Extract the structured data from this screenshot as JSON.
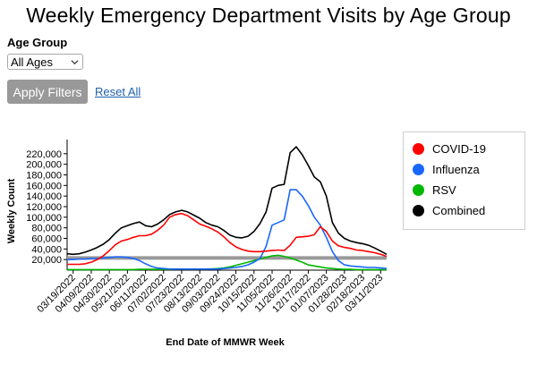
{
  "page": {
    "title": "Weekly Emergency Department Visits by Age Group"
  },
  "filters": {
    "age_group_label": "Age Group",
    "age_group_selected": "All Ages",
    "apply_label": "Apply Filters",
    "reset_label": "Reset All"
  },
  "legend": {
    "items": [
      {
        "label": "COVID-19",
        "color": "#ff0000"
      },
      {
        "label": "Influenza",
        "color": "#1a66ff"
      },
      {
        "label": "RSV",
        "color": "#00b800"
      },
      {
        "label": "Combined",
        "color": "#000000"
      }
    ]
  },
  "chart_data": {
    "type": "line",
    "title": "Weekly Emergency Department Visits by Age Group",
    "xlabel": "End Date of MMWR Week",
    "ylabel": "Weekly Count",
    "ylim": [
      0,
      240000
    ],
    "yticks": [
      20000,
      40000,
      60000,
      80000,
      100000,
      120000,
      140000,
      160000,
      180000,
      200000,
      220000
    ],
    "ytick_labels": [
      "20,000",
      "40,000",
      "60,000",
      "80,000",
      "100,000",
      "120,000",
      "140,000",
      "160,000",
      "180,000",
      "200,000",
      "220,000"
    ],
    "x_tick_labels": [
      "03/19/2022",
      "04/09/2022",
      "04/30/2022",
      "05/21/2022",
      "06/11/2022",
      "07/02/2022",
      "07/23/2022",
      "08/13/2022",
      "09/03/2022",
      "09/24/2022",
      "10/15/2022",
      "11/05/2022",
      "11/26/2022",
      "12/17/2022",
      "01/07/2023",
      "01/28/2023",
      "02/18/2023",
      "03/11/2023"
    ],
    "reference_line": {
      "value": 23000,
      "color": "#999999"
    },
    "legend_position": "right",
    "grid": false,
    "x": [
      "03/12/2022",
      "03/19/2022",
      "03/26/2022",
      "04/02/2022",
      "04/09/2022",
      "04/16/2022",
      "04/23/2022",
      "04/30/2022",
      "05/07/2022",
      "05/14/2022",
      "05/21/2022",
      "05/28/2022",
      "06/04/2022",
      "06/11/2022",
      "06/18/2022",
      "06/25/2022",
      "07/02/2022",
      "07/09/2022",
      "07/16/2022",
      "07/23/2022",
      "07/30/2022",
      "08/06/2022",
      "08/13/2022",
      "08/20/2022",
      "08/27/2022",
      "09/03/2022",
      "09/10/2022",
      "09/17/2022",
      "09/24/2022",
      "10/01/2022",
      "10/08/2022",
      "10/15/2022",
      "10/22/2022",
      "10/29/2022",
      "11/05/2022",
      "11/12/2022",
      "11/19/2022",
      "11/26/2022",
      "12/03/2022",
      "12/10/2022",
      "12/17/2022",
      "12/24/2022",
      "12/31/2022",
      "01/07/2023",
      "01/14/2023",
      "01/21/2023",
      "01/28/2023",
      "02/04/2023",
      "02/11/2023",
      "02/18/2023",
      "02/25/2023",
      "03/04/2023",
      "03/11/2023",
      "03/18/2023"
    ],
    "series": [
      {
        "name": "COVID-19",
        "color": "#ff0000",
        "values": [
          11000,
          11000,
          11000,
          12000,
          15000,
          20000,
          27000,
          37000,
          48000,
          55000,
          58000,
          62000,
          65000,
          65000,
          68000,
          75000,
          85000,
          100000,
          105000,
          107000,
          103000,
          95000,
          87000,
          83000,
          78000,
          72000,
          63000,
          52000,
          44000,
          39000,
          36000,
          35000,
          35000,
          36000,
          37000,
          38000,
          37000,
          47000,
          62000,
          63000,
          64000,
          67000,
          82000,
          73000,
          55000,
          46000,
          43000,
          41000,
          38000,
          37000,
          35000,
          33000,
          30000,
          26000
        ]
      },
      {
        "name": "Influenza",
        "color": "#1a66ff",
        "values": [
          20000,
          20000,
          21000,
          21000,
          22000,
          22000,
          23000,
          24000,
          25000,
          25000,
          24000,
          22000,
          18000,
          12000,
          7000,
          4000,
          3000,
          2000,
          2000,
          2000,
          2000,
          2000,
          2000,
          2000,
          2000,
          2000,
          3000,
          4000,
          5000,
          7000,
          10000,
          15000,
          22000,
          45000,
          85000,
          90000,
          95000,
          152000,
          152000,
          140000,
          122000,
          100000,
          85000,
          62000,
          35000,
          18000,
          10000,
          8000,
          7000,
          6000,
          5000,
          5000,
          4000,
          3000
        ]
      },
      {
        "name": "RSV",
        "color": "#00b800",
        "values": [
          1000,
          1000,
          1000,
          1000,
          1000,
          1000,
          1000,
          1000,
          1000,
          1000,
          1000,
          1000,
          1500,
          1500,
          1500,
          1500,
          1500,
          1500,
          2000,
          2000,
          2000,
          2000,
          2000,
          2000,
          2500,
          3000,
          4000,
          6000,
          9000,
          12000,
          15000,
          18000,
          21000,
          24000,
          27000,
          28000,
          26000,
          23000,
          19000,
          15000,
          10000,
          8000,
          6000,
          4000,
          3000,
          2000,
          1500,
          1500,
          1000,
          1000,
          1000,
          1000,
          1000,
          1000
        ]
      },
      {
        "name": "Combined",
        "color": "#000000",
        "values": [
          31000,
          30000,
          31000,
          34000,
          38000,
          43000,
          49000,
          58000,
          70000,
          80000,
          84000,
          88000,
          91000,
          84000,
          82000,
          87000,
          95000,
          105000,
          110000,
          113000,
          110000,
          104000,
          98000,
          90000,
          85000,
          82000,
          75000,
          66000,
          62000,
          61000,
          64000,
          73000,
          88000,
          110000,
          155000,
          160000,
          162000,
          222000,
          233000,
          218000,
          198000,
          176000,
          167000,
          140000,
          90000,
          70000,
          60000,
          55000,
          52000,
          50000,
          47000,
          42000,
          36000,
          30000
        ]
      }
    ]
  }
}
